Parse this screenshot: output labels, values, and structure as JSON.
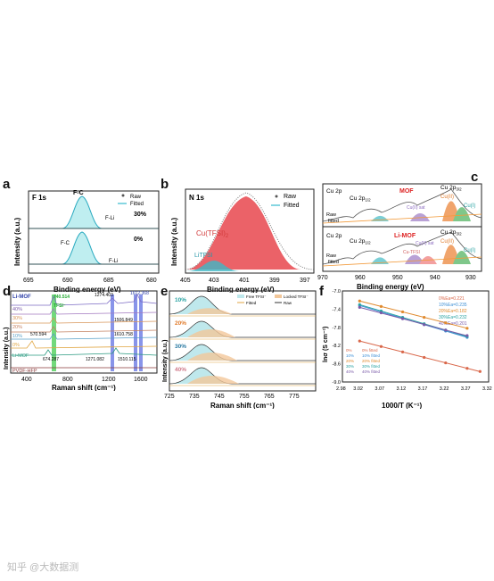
{
  "figure": {
    "a": {
      "label": "a",
      "core": "F 1s",
      "legend": [
        "Raw",
        "Fitted"
      ],
      "ylabel": "Intensity (a.u.)",
      "xlabel": "Binding energy (eV)",
      "xticks": [
        "695",
        "690",
        "685",
        "680"
      ],
      "top": {
        "pct": "30%",
        "peak": "F-C",
        "shoulder": "F-Li"
      },
      "bottom": {
        "pct": "0%",
        "peak": "F-C",
        "shoulder": "F-Li"
      }
    },
    "b": {
      "label": "b",
      "core": "N 1s",
      "legend": [
        "Raw",
        "Fitted"
      ],
      "ylabel": "Intensity (a.u.)",
      "xlabel": "Binding energy (eV)",
      "xticks": [
        "405",
        "403",
        "401",
        "399",
        "397"
      ],
      "species1": "Cu(TFSI)",
      "species1_sub": "2",
      "species2": "LiTFSI"
    },
    "c": {
      "label": "c",
      "ylabel": "Intensity (a.u.)",
      "xlabel": "Binding energy (eV)",
      "xticks": [
        "970",
        "960",
        "950",
        "940",
        "930"
      ],
      "top": {
        "title": "MOF",
        "cu2p": "Cu 2p",
        "p12": "Cu 2p",
        "p12_sub": "1/2",
        "p32": "Cu 2p",
        "p32_sub": "3/2",
        "cu2": "Cu(II)",
        "cu1": "Cu(I)",
        "sat": "Cu(II) sat",
        "raw": "Raw",
        "fitted": "fitted"
      },
      "bottom": {
        "title": "Li-MOF",
        "cu2p": "Cu 2p",
        "p12": "Cu 2p",
        "p12_sub": "1/2",
        "p32": "Cu 2p",
        "p32_sub": "3/2",
        "cu2": "Cu(II)",
        "cu1": "Cu(I)",
        "sat": "Cu(II) sat",
        "tfsi": "Cu-TFSI",
        "raw": "Raw",
        "fitted": "fitted"
      }
    },
    "d": {
      "label": "d",
      "ylabel": "Intensity (a.u.)",
      "xlabel": "Raman shift (cm⁻¹)",
      "xticks": [
        "400",
        "800",
        "1200",
        "1600"
      ],
      "series": [
        "Li-MOF",
        "40%",
        "30%",
        "20%",
        "10%",
        "0%",
        "Li-MOF",
        "PVDF-HFP"
      ],
      "bands": [
        "740.514",
        "TFSI⁻",
        "1274.403",
        "1612.368",
        "570.594",
        "1506.849",
        "1610.758",
        "674.287",
        "1271.082",
        "1510.115"
      ]
    },
    "e": {
      "label": "e",
      "ylabel": "Intensity (a.u.)",
      "xlabel": "Raman shift (cm⁻¹)",
      "xticks": [
        "725",
        "735",
        "745",
        "755",
        "765",
        "775"
      ],
      "traces": [
        "10%",
        "20%",
        "30%",
        "40%"
      ],
      "legend": [
        "Free TFSI⁻",
        "Locked TFSI⁻",
        "Fitted",
        "Raw"
      ]
    },
    "f": {
      "label": "f",
      "ylabel": "lnσ (S cm⁻¹)",
      "xlabel": "1000/T (K⁻¹)",
      "ea": [
        "0%Ea=0.221",
        "10%Ea=0.235",
        "20%Ea=0.182",
        "30%Ea=0.232",
        "40%Ea=0.201"
      ],
      "legend": [
        "0%",
        "0% fitted",
        "10%",
        "10% fitted",
        "20%",
        "20% fitted",
        "30%",
        "30% fitted",
        "40%",
        "40% fitted"
      ]
    }
  },
  "chart_data": {
    "type": "scatter",
    "title": "",
    "xlabel": "1000/T (K⁻¹)",
    "ylabel": "lnσ (S cm⁻¹)",
    "xlim": [
      2.98,
      3.32
    ],
    "ylim": [
      -9.0,
      -7.0
    ],
    "xticks": [
      2.98,
      3.02,
      3.07,
      3.12,
      3.17,
      3.22,
      3.27,
      3.32
    ],
    "yticks": [
      -7.0,
      -7.4,
      -7.8,
      -8.2,
      -8.6,
      -9.0
    ],
    "legend": "bottom-left",
    "series": [
      {
        "name": "0%",
        "color": "#d9674a",
        "x": [
          3.02,
          3.07,
          3.12,
          3.17,
          3.22,
          3.27,
          3.3
        ],
        "y": [
          -8.1,
          -8.22,
          -8.34,
          -8.46,
          -8.58,
          -8.7,
          -8.77
        ]
      },
      {
        "name": "10%",
        "color": "#3c8fd6",
        "x": [
          3.02,
          3.07,
          3.12,
          3.17,
          3.22,
          3.27
        ],
        "y": [
          -7.32,
          -7.46,
          -7.6,
          -7.74,
          -7.88,
          -8.02
        ]
      },
      {
        "name": "20%",
        "color": "#e08a2e",
        "x": [
          3.02,
          3.07,
          3.12,
          3.17,
          3.22,
          3.27
        ],
        "y": [
          -7.22,
          -7.34,
          -7.46,
          -7.58,
          -7.7,
          -7.82
        ]
      },
      {
        "name": "30%",
        "color": "#2aa3a3",
        "x": [
          3.02,
          3.07,
          3.12,
          3.17,
          3.22,
          3.27
        ],
        "y": [
          -7.3,
          -7.44,
          -7.58,
          -7.72,
          -7.86,
          -8.0
        ]
      },
      {
        "name": "40%",
        "color": "#7a5aa8",
        "x": [
          3.02,
          3.07,
          3.12,
          3.17,
          3.22,
          3.27
        ],
        "y": [
          -7.36,
          -7.48,
          -7.61,
          -7.74,
          -7.86,
          -7.98
        ]
      }
    ]
  },
  "watermark": "知乎 @大数据测"
}
